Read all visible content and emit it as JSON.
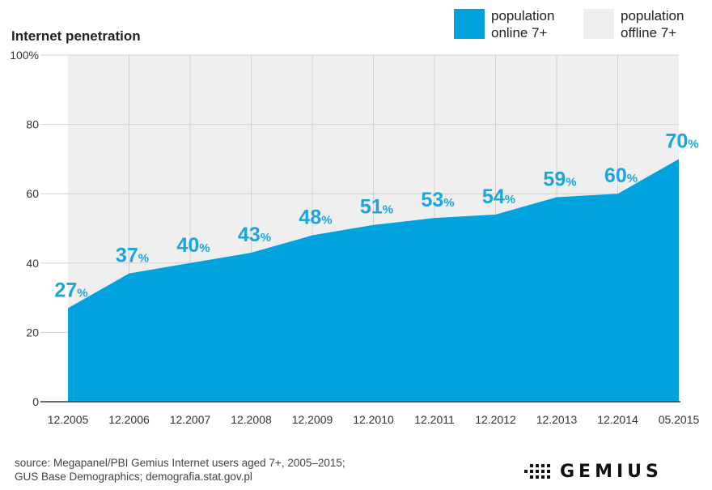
{
  "chart_data": {
    "type": "area",
    "title": "",
    "ylabel": "Internet penetration",
    "xlabel": "",
    "ylim": [
      0,
      100
    ],
    "y_ticks": [
      "0",
      "20",
      "40",
      "60",
      "80",
      "100%"
    ],
    "categories": [
      "12.2005",
      "12.2006",
      "12.2007",
      "12.2008",
      "12.2009",
      "12.2010",
      "12.2011",
      "12.2012",
      "12.2013",
      "12.2014",
      "05.2015"
    ],
    "series": [
      {
        "name": "population online 7+",
        "values": [
          27,
          37,
          40,
          43,
          48,
          51,
          53,
          54,
          59,
          60,
          70
        ],
        "color": "#00a3dd"
      },
      {
        "name": "population offline 7+",
        "color": "#efefef"
      }
    ],
    "value_labels": [
      "27",
      "37",
      "40",
      "43",
      "48",
      "51",
      "53",
      "54",
      "59",
      "60",
      "70"
    ],
    "value_suffix": "%",
    "label_color": "#1aa6dc",
    "grid": true,
    "legend": "top-right"
  },
  "legend": {
    "online_line1": "population",
    "online_line2": "online 7+",
    "offline_line1": "population",
    "offline_line2": "offline 7+"
  },
  "footer": {
    "source_line1": "source: Megapanel/PBI Gemius Internet users aged 7+, 2005–2015;",
    "source_line2": "GUS Base Demographics; demografia.stat.gov.pl",
    "logo_text": "GEMIUS"
  }
}
